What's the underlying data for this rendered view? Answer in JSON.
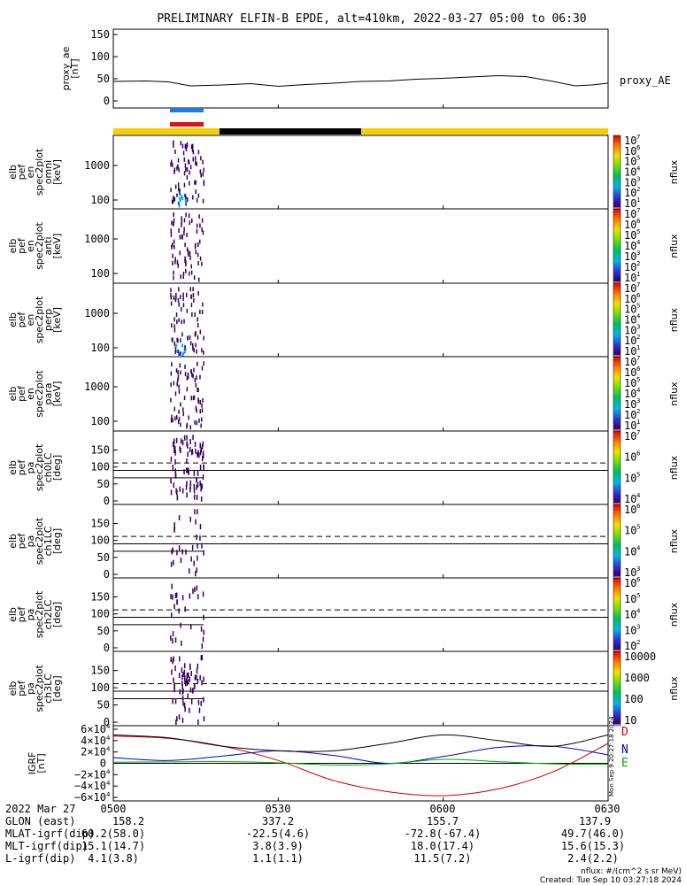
{
  "title": "PRELIMINARY ELFIN-B EPDE, alt=410km, 2022-03-27 05:00 to 06:30",
  "chart_data": [
    {
      "type": "line",
      "panel": "proxy_ae",
      "ylabel": [
        "proxy_ae",
        "[nT]"
      ],
      "legend": "proxy_AE",
      "ylim": [
        0,
        150
      ],
      "yticks": [
        "150",
        "100",
        "50",
        "0"
      ],
      "x_minutes": [
        0,
        6,
        10,
        14,
        20,
        25,
        30,
        35,
        40,
        45,
        50,
        55,
        60,
        65,
        70,
        75,
        80,
        84,
        87,
        90
      ],
      "values": [
        44,
        45,
        43,
        34,
        36,
        39,
        33,
        37,
        40,
        44,
        45,
        49,
        51,
        54,
        57,
        55,
        44,
        34,
        36,
        40
      ]
    },
    {
      "type": "heatmap",
      "panel": "omni",
      "ylabel": [
        "elb",
        "pef",
        "en",
        "spec2plot",
        "omni",
        "[keV]"
      ],
      "yscale": "log",
      "yticks": [
        "1000",
        "100"
      ],
      "colorbar": {
        "label": "nflux",
        "ticks": [
          "10",
          "10",
          "10",
          "10",
          "10",
          "10",
          "10"
        ],
        "exponents": [
          "7",
          "6",
          "5",
          "4",
          "3",
          "2",
          "1"
        ]
      }
    },
    {
      "type": "heatmap",
      "panel": "anti",
      "ylabel": [
        "elb",
        "pef",
        "en",
        "spec2plot",
        "anti",
        "[keV]"
      ],
      "yscale": "log",
      "yticks": [
        "1000",
        "100"
      ],
      "colorbar": {
        "label": "nflux",
        "ticks": [
          "10",
          "10",
          "10",
          "10",
          "10",
          "10",
          "10"
        ],
        "exponents": [
          "7",
          "6",
          "5",
          "4",
          "3",
          "2",
          "1"
        ]
      }
    },
    {
      "type": "heatmap",
      "panel": "perp",
      "ylabel": [
        "elb",
        "pef",
        "en",
        "spec2plot",
        "perp",
        "[keV]"
      ],
      "yscale": "log",
      "yticks": [
        "1000",
        "100"
      ],
      "colorbar": {
        "label": "nflux",
        "ticks": [
          "10",
          "10",
          "10",
          "10",
          "10",
          "10",
          "10"
        ],
        "exponents": [
          "7",
          "6",
          "5",
          "4",
          "3",
          "2",
          "1"
        ]
      }
    },
    {
      "type": "heatmap",
      "panel": "para",
      "ylabel": [
        "elb",
        "pef",
        "en",
        "spec2plot",
        "para",
        "[keV]"
      ],
      "yscale": "log",
      "yticks": [
        "1000",
        "100"
      ],
      "colorbar": {
        "label": "nflux",
        "ticks": [
          "10",
          "10",
          "10",
          "10",
          "10",
          "10",
          "10"
        ],
        "exponents": [
          "7",
          "6",
          "5",
          "4",
          "3",
          "2",
          "1"
        ]
      }
    },
    {
      "type": "heatmap",
      "panel": "ch0LC",
      "ylabel": [
        "elb",
        "pef",
        "pa",
        "spec2plot",
        "ch0LC",
        "[deg]"
      ],
      "yticks": [
        "150",
        "100",
        "50",
        "0"
      ],
      "colorbar": {
        "label": "nflux",
        "ticks": [
          "10",
          "10",
          "10",
          "10"
        ],
        "exponents": [
          "7",
          "6",
          "5",
          "4"
        ]
      }
    },
    {
      "type": "heatmap",
      "panel": "ch1LC",
      "ylabel": [
        "elb",
        "pef",
        "pa",
        "spec2plot",
        "ch1LC",
        "[deg]"
      ],
      "yticks": [
        "150",
        "100",
        "50",
        "0"
      ],
      "colorbar": {
        "label": "nflux",
        "ticks": [
          "10",
          "10",
          "10",
          "10"
        ],
        "exponents": [
          "6",
          "5",
          "4",
          "3"
        ]
      }
    },
    {
      "type": "heatmap",
      "panel": "ch2LC",
      "ylabel": [
        "elb",
        "pef",
        "pa",
        "spec2plot",
        "ch2LC",
        "[deg]"
      ],
      "yticks": [
        "150",
        "100",
        "50",
        "0"
      ],
      "colorbar": {
        "label": "nflux",
        "ticks": [
          "10",
          "10",
          "10",
          "10",
          "10"
        ],
        "exponents": [
          "6",
          "5",
          "4",
          "3",
          "2"
        ]
      }
    },
    {
      "type": "heatmap",
      "panel": "ch3LC",
      "ylabel": [
        "elb",
        "pef",
        "pa",
        "spec2plot",
        "ch3LC",
        "[deg]"
      ],
      "yticks": [
        "150",
        "100",
        "50",
        "0"
      ],
      "colorbar": {
        "label": "nflux",
        "ticks": [
          "10000",
          "1000",
          "100",
          "10"
        ]
      }
    },
    {
      "type": "line",
      "panel": "IGRF",
      "ylabel": [
        "IGRF",
        "[nT]"
      ],
      "ylim": [
        -60000,
        60000
      ],
      "yticks": [
        "6×10",
        "4×10",
        "2×10",
        "0",
        "−2×10",
        "−4×10",
        "−6×10"
      ],
      "ytick_exp": "4",
      "x_minutes": [
        0,
        10,
        20,
        30,
        40,
        50,
        60,
        70,
        80,
        90
      ],
      "series": [
        {
          "name": "D",
          "color": "#cc0000",
          "values": [
            48000,
            44000,
            30000,
            5000,
            -30000,
            -50000,
            -57000,
            -45000,
            -15000,
            35000
          ]
        },
        {
          "name": "N",
          "color": "#0000cc",
          "values": [
            10000,
            5000,
            13000,
            22000,
            14000,
            0,
            12000,
            28000,
            30000,
            15000
          ]
        },
        {
          "name": "E",
          "color": "#00aa00",
          "values": [
            2000,
            2500,
            3000,
            1000,
            -3000,
            -1000,
            7000,
            3000,
            -1000,
            -2000
          ]
        },
        {
          "name": "total",
          "color": "#000000",
          "values": [
            50000,
            45000,
            30000,
            22000,
            22000,
            35000,
            50000,
            40000,
            30000,
            50000
          ]
        }
      ],
      "legend": [
        "D",
        "N",
        "E"
      ]
    }
  ],
  "ephemeris": {
    "header": "2022 Mar 27",
    "times": [
      "0500",
      "0530",
      "0600",
      "0630"
    ],
    "rows": [
      {
        "label": "GLON (east)",
        "values": [
          "158.2",
          "337.2",
          "155.7",
          "137.9"
        ]
      },
      {
        "label": "MLAT-igrf(dip)",
        "values": [
          "60.2(58.0)",
          "-22.5(4.6)",
          "-72.8(-67.4)",
          "49.7(46.0)"
        ]
      },
      {
        "label": "MLT-igrf(dip)",
        "values": [
          "15.1(14.7)",
          "3.8(3.9)",
          "18.0(17.4)",
          "15.6(15.3)"
        ]
      },
      {
        "label": "L-igrf(dip)",
        "values": [
          "4.1(3.8)",
          "1.1(1.1)",
          "11.5(7.2)",
          "2.4(2.2)"
        ]
      }
    ]
  },
  "footer": {
    "units": "nflux: #/(cm^2 s sr MeV)",
    "created": "Created: Tue Sep 10 03:27:18 2024",
    "side_stamp": "Mon Sep 9 20:27:18 2024"
  },
  "colors": {
    "day_bar": "#f5d000",
    "night_bar": "#000000",
    "marker_blue": "#1e7be6",
    "marker_red": "#e01010"
  }
}
